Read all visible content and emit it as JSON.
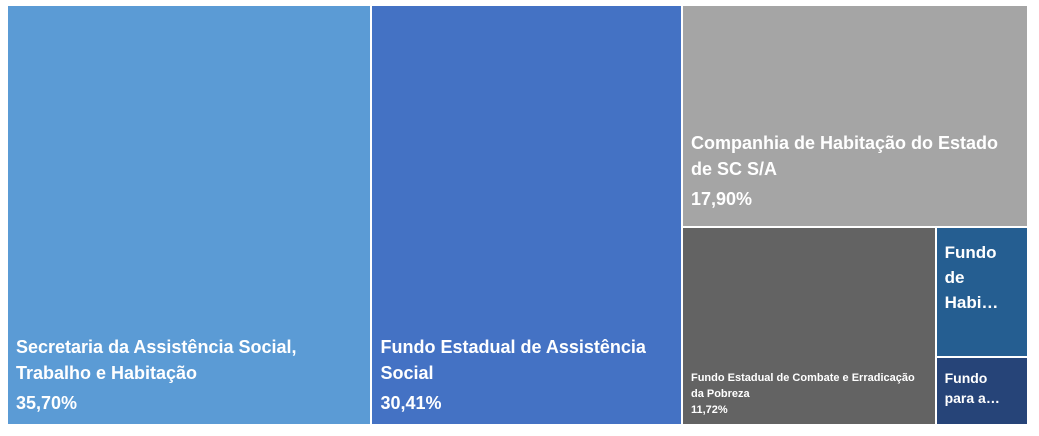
{
  "chart_data": {
    "type": "treemap",
    "categories": [
      "Secretaria da Assistência Social, Trabalho e Habitação",
      "Fundo Estadual de Assistência Social",
      "Companhia de Habitação do Estado de SC S/A",
      "Fundo Estadual de  Combate e Erradicação da Pobreza",
      "Fundo de Habi…",
      "Fundo para a…"
    ],
    "values": [
      35.7,
      30.41,
      17.9,
      11.72,
      2.8,
      1.47
    ],
    "value_labels": [
      "35,70%",
      "30,41%",
      "17,90%",
      "11,72%",
      null,
      null
    ],
    "colors": [
      "#5b9bd5",
      "#4472c4",
      "#a5a5a5",
      "#636363",
      "#255e91",
      "#264478"
    ]
  }
}
